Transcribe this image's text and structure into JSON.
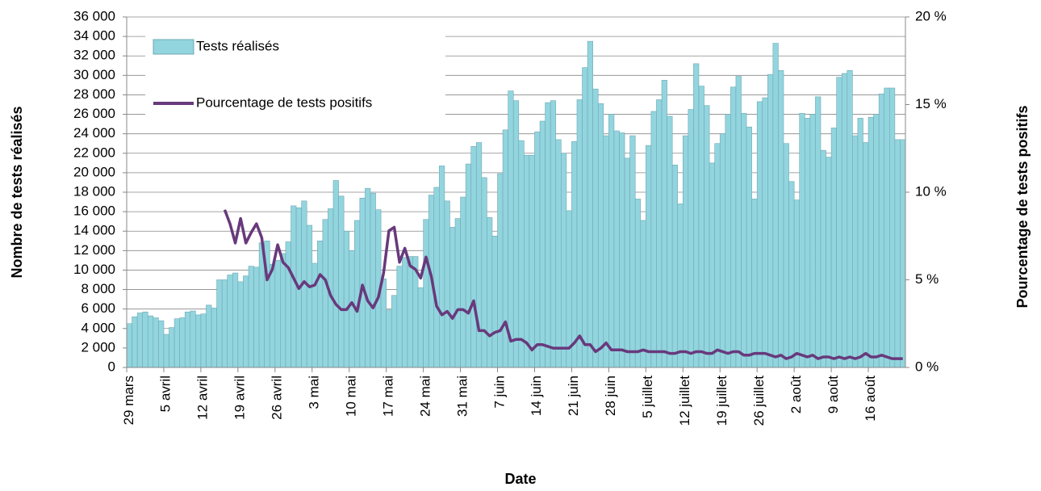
{
  "chart_data": {
    "type": "bar",
    "x_label": "Date",
    "y_label": "Nombre de tests réalisés",
    "y2_label": "Pourcentage de tests positifs",
    "categories": [
      "29 mars",
      null,
      null,
      null,
      null,
      null,
      null,
      "5 avril",
      null,
      null,
      null,
      null,
      null,
      null,
      "12 avril",
      null,
      null,
      null,
      null,
      null,
      null,
      "19 avril",
      null,
      null,
      null,
      null,
      null,
      null,
      "26 avril",
      null,
      null,
      null,
      null,
      null,
      null,
      "3 mai",
      null,
      null,
      null,
      null,
      null,
      null,
      "10 mai",
      null,
      null,
      null,
      null,
      null,
      null,
      "17 mai",
      null,
      null,
      null,
      null,
      null,
      null,
      "24 mai",
      null,
      null,
      null,
      null,
      null,
      null,
      "31 mai",
      null,
      null,
      null,
      null,
      null,
      null,
      "7 juin",
      null,
      null,
      null,
      null,
      null,
      null,
      "14 juin",
      null,
      null,
      null,
      null,
      null,
      null,
      "21 juin",
      null,
      null,
      null,
      null,
      null,
      null,
      "28 juin",
      null,
      null,
      null,
      null,
      null,
      null,
      "5 juillet",
      null,
      null,
      null,
      null,
      null,
      null,
      "12 juillet",
      null,
      null,
      null,
      null,
      null,
      null,
      "19 juillet",
      null,
      null,
      null,
      null,
      null,
      null,
      "26 juillet",
      null,
      null,
      null,
      null,
      null,
      null,
      "2 août",
      null,
      null,
      null,
      null,
      null,
      null,
      "9 août",
      null,
      null,
      null,
      null,
      null,
      null,
      "16 août",
      null,
      null,
      null,
      null,
      null,
      null
    ],
    "series": [
      {
        "name": "Tests réalisés",
        "type": "bar",
        "color": "#92d5de",
        "values": [
          4500,
          5200,
          5600,
          5700,
          5300,
          5100,
          4800,
          3400,
          4100,
          5000,
          5100,
          5700,
          5800,
          5400,
          5500,
          6400,
          6100,
          9000,
          9000,
          9500,
          9700,
          8800,
          9400,
          10400,
          10300,
          12800,
          13000,
          10600,
          11000,
          11700,
          12900,
          16600,
          16400,
          17100,
          14600,
          10700,
          13000,
          15200,
          16300,
          19200,
          17600,
          14000,
          12000,
          15100,
          17400,
          18400,
          17900,
          16200,
          9100,
          5900,
          7400,
          10400,
          11300,
          11400,
          11400,
          8200,
          15200,
          17700,
          18500,
          20700,
          17100,
          14400,
          15300,
          17500,
          20900,
          22700,
          23100,
          19500,
          15400,
          13500,
          19900,
          24400,
          28400,
          27400,
          23300,
          21800,
          21800,
          24200,
          25300,
          27200,
          27400,
          23400,
          22000,
          16100,
          23200,
          27500,
          30800,
          33500,
          28600,
          27100,
          23800,
          26000,
          24300,
          24100,
          21500,
          23800,
          17300,
          15100,
          22800,
          26300,
          27500,
          29500,
          25800,
          20800,
          16800,
          23800,
          26500,
          31200,
          28900,
          26900,
          21000,
          23000,
          24000,
          26000,
          28800,
          29900,
          26100,
          24700,
          17300,
          27300,
          27700,
          30100,
          33300,
          30500,
          23000,
          19100,
          17200,
          26100,
          25600,
          26000,
          27800,
          22300,
          21600,
          24600,
          29800,
          30200,
          30500,
          23800,
          25600,
          23100,
          25700,
          26000,
          28100,
          28700,
          28700,
          23400,
          23400
        ]
      },
      {
        "name": "Pourcentage de tests positifs",
        "type": "line",
        "axis": "y2",
        "color": "#68397c",
        "values": [
          null,
          null,
          null,
          null,
          null,
          null,
          null,
          null,
          null,
          null,
          null,
          null,
          null,
          null,
          null,
          null,
          null,
          null,
          9.0,
          8.2,
          7.1,
          8.5,
          7.1,
          7.7,
          8.2,
          7.4,
          5.0,
          5.6,
          7.0,
          6.0,
          5.7,
          5.1,
          4.5,
          4.9,
          4.6,
          4.7,
          5.3,
          5.0,
          4.1,
          3.6,
          3.3,
          3.3,
          3.7,
          3.2,
          4.7,
          3.8,
          3.4,
          4.0,
          5.4,
          7.8,
          8.0,
          6.0,
          6.8,
          5.8,
          5.6,
          5.1,
          6.3,
          5.2,
          3.5,
          3.0,
          3.2,
          2.8,
          3.3,
          3.3,
          3.1,
          3.8,
          2.1,
          2.1,
          1.8,
          2.0,
          2.1,
          2.6,
          1.5,
          1.6,
          1.6,
          1.4,
          1.0,
          1.3,
          1.3,
          1.2,
          1.1,
          1.1,
          1.1,
          1.1,
          1.4,
          1.8,
          1.3,
          1.3,
          0.9,
          1.1,
          1.4,
          1.0,
          1.0,
          1.0,
          0.9,
          0.9,
          0.9,
          1.0,
          0.9,
          0.9,
          0.9,
          0.9,
          0.8,
          0.8,
          0.9,
          0.9,
          0.8,
          0.9,
          0.9,
          0.8,
          0.8,
          1.0,
          0.9,
          0.8,
          0.9,
          0.9,
          0.7,
          0.7,
          0.8,
          0.8,
          0.8,
          0.7,
          0.6,
          0.7,
          0.5,
          0.6,
          0.8,
          0.7,
          0.6,
          0.7,
          0.5,
          0.6,
          0.6,
          0.5,
          0.6,
          0.5,
          0.6,
          0.5,
          0.6,
          0.8,
          0.6,
          0.6,
          0.7,
          0.6,
          0.5,
          0.5,
          0.5
        ]
      }
    ],
    "ylim": [
      0,
      36000
    ],
    "yticks": [
      0,
      {
        "value": 2000,
        "label": "2 000"
      },
      {
        "value": 4000,
        "label": "4 000"
      },
      {
        "value": 6000,
        "label": "6 000"
      },
      {
        "value": 8000,
        "label": "8 000"
      },
      {
        "value": 10000,
        "label": "10 000"
      },
      {
        "value": 12000,
        "label": "12 000"
      },
      {
        "value": 14000,
        "label": "14 000"
      },
      {
        "value": 16000,
        "label": "16 000"
      },
      {
        "value": 18000,
        "label": "18 000"
      },
      {
        "value": 20000,
        "label": "20 000"
      },
      {
        "value": 22000,
        "label": "22 000"
      },
      {
        "value": 24000,
        "label": "24 000"
      },
      {
        "value": 26000,
        "label": "26 000"
      },
      {
        "value": 28000,
        "label": "28 000"
      },
      {
        "value": 30000,
        "label": "30 000"
      },
      {
        "value": 32000,
        "label": "32 000"
      },
      {
        "value": 34000,
        "label": "34 000"
      },
      {
        "value": 36000,
        "label": "36 000"
      }
    ],
    "y2lim": [
      0,
      20
    ],
    "y2ticks": [
      {
        "value": 0,
        "label": "0 %"
      },
      {
        "value": 5,
        "label": "5 %"
      },
      {
        "value": 10,
        "label": "10 %"
      },
      {
        "value": 15,
        "label": "15 %"
      },
      {
        "value": 20,
        "label": "20 %"
      }
    ],
    "grid": true,
    "legend": "upper left"
  }
}
